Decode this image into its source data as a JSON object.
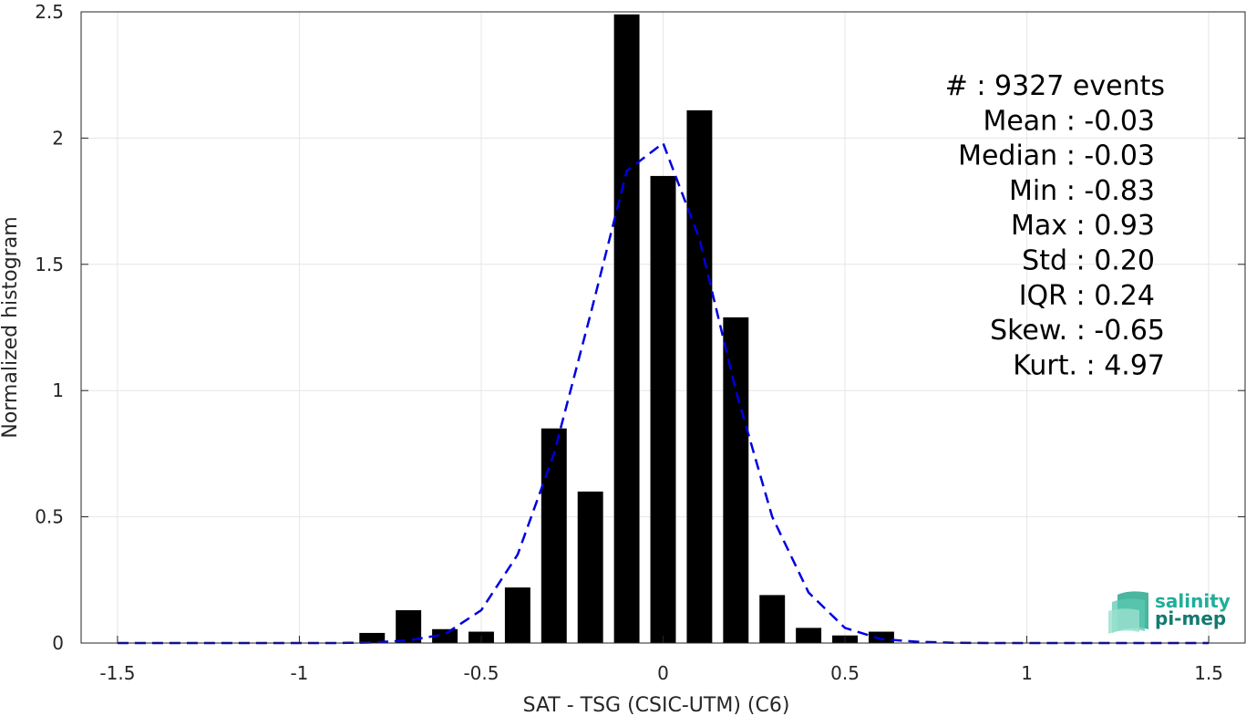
{
  "chart_data": {
    "type": "bar",
    "xlabel": "SAT - TSG (CSIC-UTM) (C6)",
    "ylabel": "Normalized histogram",
    "xlim": [
      -1.6,
      1.6
    ],
    "ylim": [
      0,
      2.5
    ],
    "xticks": [
      -1.5,
      -1,
      -0.5,
      0,
      0.5,
      1,
      1.5
    ],
    "xtick_labels": [
      "-1.5",
      "-1",
      "-0.5",
      "0",
      "0.5",
      "1",
      "1.5"
    ],
    "yticks": [
      0,
      0.5,
      1,
      1.5,
      2,
      2.5
    ],
    "ytick_labels": [
      "0",
      "0.5",
      "1",
      "1.5",
      "2",
      "2.5"
    ],
    "grid": true,
    "bar_color": "#000000",
    "curve_color": "#0000e0",
    "bars": {
      "x": [
        -0.8,
        -0.7,
        -0.6,
        -0.5,
        -0.4,
        -0.3,
        -0.2,
        -0.1,
        0.0,
        0.1,
        0.2,
        0.3,
        0.4,
        0.5,
        0.6
      ],
      "values": [
        0.04,
        0.13,
        0.055,
        0.045,
        0.22,
        0.85,
        0.6,
        2.49,
        1.85,
        2.11,
        1.29,
        0.19,
        0.06,
        0.03,
        0.045
      ]
    },
    "fit_curve": {
      "style": "dashed",
      "x": [
        -1.5,
        -1.4,
        -1.3,
        -1.2,
        -1.1,
        -1.0,
        -0.9,
        -0.8,
        -0.7,
        -0.6,
        -0.5,
        -0.4,
        -0.3,
        -0.2,
        -0.1,
        0.0,
        0.1,
        0.2,
        0.3,
        0.4,
        0.5,
        0.6,
        0.7,
        0.8,
        0.9,
        1.0,
        1.1,
        1.2,
        1.3,
        1.4,
        1.5
      ],
      "y": [
        0,
        0,
        0,
        0,
        0,
        0,
        0,
        0.002,
        0.01,
        0.035,
        0.13,
        0.35,
        0.75,
        1.3,
        1.87,
        1.98,
        1.6,
        1.0,
        0.5,
        0.2,
        0.06,
        0.015,
        0.005,
        0.001,
        0,
        0,
        0,
        0,
        0,
        0,
        0
      ]
    },
    "annotations": [
      "#  : 9327 events",
      "Mean : -0.03",
      "Median : -0.03",
      "Min : -0.83",
      "Max : 0.93",
      "Std : 0.20",
      "IQR : 0.24",
      "Skew. : -0.65",
      "Kurt. : 4.97"
    ]
  },
  "logo": {
    "line1": "salinity",
    "line2": "pi-mep",
    "color1": "#1fae9a",
    "color2": "#127a70"
  }
}
